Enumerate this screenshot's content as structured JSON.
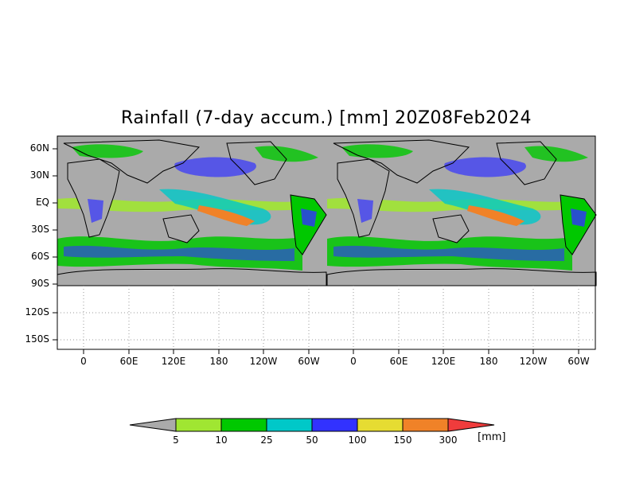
{
  "title": "Rainfall (7-day accum.) [mm] 20Z08Feb2024",
  "y_ticks": [
    "60N",
    "30N",
    "EQ",
    "30S",
    "60S",
    "90S",
    "120S",
    "150S"
  ],
  "x_ticks": [
    "0",
    "60E",
    "120E",
    "180",
    "120W",
    "60W",
    "0",
    "60E",
    "120E",
    "180",
    "120W",
    "60W"
  ],
  "colorbar": {
    "labels": [
      "5",
      "10",
      "25",
      "50",
      "100",
      "150",
      "300"
    ],
    "unit": "[mm]",
    "colors": [
      "#aaaaaa",
      "#a0e632",
      "#00c800",
      "#00c8c8",
      "#3232ff",
      "#e6dc32",
      "#f08228",
      "#f03c3c"
    ]
  },
  "colors": {
    "no_rain": "#aaaaaa",
    "land_lines": "#000000",
    "grid": "#999999"
  }
}
